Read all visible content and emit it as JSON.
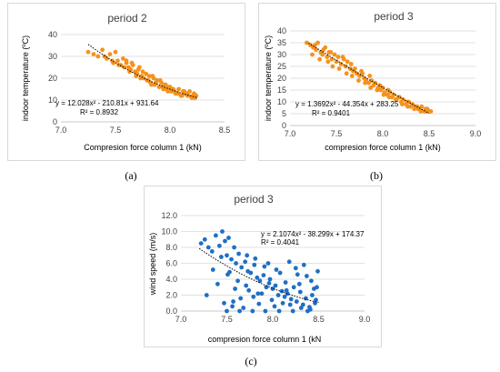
{
  "captions": {
    "a": "(a)",
    "b": "(b)",
    "c": "(c)"
  },
  "chart_data": [
    {
      "id": "a",
      "type": "scatter",
      "title": "period 2",
      "xlabel": "Compresion force column 1 (kN)",
      "ylabel": "indoor temperature (ºC)",
      "xlim": [
        7.0,
        8.5
      ],
      "ylim": [
        0,
        40
      ],
      "xticks": [
        "7.0",
        "7.5",
        "8.0",
        "8.5"
      ],
      "yticks": [
        "0",
        "10",
        "20",
        "30",
        "40"
      ],
      "color": "#F4921E",
      "trendline": {
        "equation": "y = 12.028x² - 210.81x + 931.64",
        "r2": "R² = 0.8932",
        "coef": [
          12.028,
          -210.81,
          931.64
        ],
        "x_range": [
          7.25,
          8.25
        ]
      },
      "series": [
        {
          "x": [
            7.25,
            7.3,
            7.34,
            7.38,
            7.42,
            7.45,
            7.48,
            7.5,
            7.52,
            7.55,
            7.57,
            7.6,
            7.62,
            7.64,
            7.66,
            7.68,
            7.7,
            7.72,
            7.74,
            7.76,
            7.78,
            7.8,
            7.82,
            7.84,
            7.86,
            7.88,
            7.9,
            7.92,
            7.94,
            7.96,
            7.98,
            8.0,
            8.02,
            8.04,
            8.06,
            8.08,
            8.1,
            8.12,
            8.14,
            8.16,
            8.18,
            8.2,
            8.22,
            8.24,
            7.4,
            7.47,
            7.53,
            7.58,
            7.63,
            7.69,
            7.73,
            7.79,
            7.83,
            7.87,
            7.93,
            7.97,
            8.01,
            8.05,
            8.11,
            8.15,
            8.21,
            7.6,
            7.65,
            7.75,
            7.85,
            7.95,
            8.03,
            8.13,
            7.71,
            7.81,
            7.91,
            7.99,
            8.07,
            8.17,
            8.23
          ],
          "y": [
            32,
            31,
            30,
            33,
            29,
            31,
            27,
            32,
            28,
            26,
            29,
            27,
            25,
            24,
            26,
            23,
            22,
            25,
            21,
            20,
            22,
            19,
            18,
            21,
            17,
            19,
            16,
            18,
            15,
            17,
            14,
            16,
            15,
            14,
            13,
            15,
            12,
            14,
            13,
            12,
            14,
            11,
            13,
            12,
            30,
            28,
            26,
            25,
            23,
            21,
            20,
            19,
            17,
            18,
            16,
            15,
            14,
            13,
            12,
            13,
            12,
            28,
            27,
            23,
            20,
            17,
            15,
            14,
            24,
            21,
            19,
            16,
            13,
            12,
            11
          ]
        }
      ]
    },
    {
      "id": "b",
      "type": "scatter",
      "title": "period 3",
      "xlabel": "compresion force column 1 (kN)",
      "ylabel": "indoor temperature (ºC)",
      "xlim": [
        7.0,
        9.0
      ],
      "ylim": [
        0,
        40
      ],
      "xticks": [
        "7.0",
        "7.5",
        "8.0",
        "8.5",
        "9.0"
      ],
      "yticks": [
        "0",
        "5",
        "10",
        "15",
        "20",
        "25",
        "30",
        "35",
        "40"
      ],
      "color": "#F4921E",
      "trendline": {
        "equation": "y = 1.3692x² - 44.354x + 283.25",
        "r2": "R² = 0.9401",
        "coef": [
          1.3692,
          -44.354,
          283.25
        ],
        "x_range": [
          7.2,
          8.5
        ]
      },
      "series": [
        {
          "x": [
            7.18,
            7.22,
            7.25,
            7.28,
            7.3,
            7.33,
            7.35,
            7.38,
            7.4,
            7.42,
            7.45,
            7.48,
            7.5,
            7.52,
            7.55,
            7.58,
            7.6,
            7.62,
            7.65,
            7.68,
            7.7,
            7.72,
            7.75,
            7.78,
            7.8,
            7.82,
            7.85,
            7.88,
            7.9,
            7.92,
            7.95,
            7.98,
            8.0,
            8.02,
            8.05,
            8.08,
            8.1,
            8.12,
            8.15,
            8.18,
            8.2,
            8.22,
            8.25,
            8.28,
            8.3,
            8.32,
            8.35,
            8.38,
            8.4,
            8.42,
            8.45,
            8.48,
            8.5,
            8.52,
            7.24,
            7.32,
            7.41,
            7.46,
            7.53,
            7.61,
            7.67,
            7.74,
            7.81,
            7.87,
            7.94,
            8.01,
            8.07,
            8.14,
            8.21,
            8.27,
            8.34,
            8.41,
            8.47,
            7.27,
            7.36,
            7.44,
            7.57,
            7.66,
            7.77,
            7.86,
            7.97,
            8.06,
            8.17,
            8.26,
            8.37,
            8.46
          ],
          "y": [
            35,
            34,
            33,
            32,
            35,
            31,
            30,
            33,
            29,
            31,
            28,
            30,
            27,
            29,
            26,
            28,
            25,
            27,
            24,
            23,
            24,
            22,
            21,
            22,
            20,
            19,
            18,
            19,
            17,
            18,
            16,
            15,
            16,
            14,
            13,
            14,
            12,
            13,
            11,
            12,
            10,
            11,
            9,
            10,
            8,
            9,
            8,
            7,
            7,
            8,
            6,
            7,
            6,
            6,
            30,
            28,
            27,
            25,
            24,
            22,
            21,
            19,
            18,
            16,
            15,
            13,
            12,
            11,
            9,
            8,
            7,
            6,
            6,
            34,
            32,
            31,
            29,
            26,
            23,
            21,
            17,
            15,
            12,
            10,
            8,
            7
          ]
        }
      ]
    },
    {
      "id": "c",
      "type": "scatter",
      "title": "period 3",
      "xlabel": "compresion force column 1 (kN",
      "ylabel": "wind speed (m/s)",
      "xlim": [
        7.0,
        9.0
      ],
      "ylim": [
        0,
        12
      ],
      "xticks": [
        "7.0",
        "7.5",
        "8.0",
        "8.5",
        "9.0"
      ],
      "yticks": [
        "0.0",
        "2.0",
        "4.0",
        "6.0",
        "8.0",
        "10.0",
        "12.0"
      ],
      "color": "#1F6FC5",
      "trendline": {
        "equation": "y = 2.1074x² - 38.299x + 174.37",
        "r2": "R² = 0.4041",
        "coef": [
          2.1074,
          -38.299,
          174.37
        ],
        "x_range": [
          7.2,
          8.5
        ]
      },
      "series": [
        {
          "x": [
            7.22,
            7.26,
            7.3,
            7.34,
            7.38,
            7.42,
            7.45,
            7.48,
            7.5,
            7.52,
            7.55,
            7.58,
            7.6,
            7.63,
            7.66,
            7.7,
            7.73,
            7.76,
            7.8,
            7.83,
            7.86,
            7.9,
            7.93,
            7.96,
            8.0,
            8.03,
            8.06,
            8.1,
            8.13,
            8.16,
            8.2,
            8.23,
            8.26,
            8.3,
            8.33,
            8.36,
            8.4,
            8.43,
            8.46,
            8.49,
            7.28,
            7.35,
            7.4,
            7.47,
            7.51,
            7.56,
            7.62,
            7.68,
            7.74,
            7.79,
            7.85,
            7.91,
            7.97,
            8.02,
            8.08,
            8.14,
            8.19,
            8.25,
            8.31,
            8.37,
            8.42,
            8.47,
            7.44,
            7.53,
            7.59,
            7.65,
            7.72,
            7.81,
            7.88,
            7.95,
            8.04,
            8.11,
            8.18,
            8.27,
            8.34,
            8.41,
            8.48,
            7.5,
            7.57,
            7.64,
            7.71,
            7.78,
            7.84,
            7.92,
            7.99,
            8.07,
            8.15,
            8.22,
            8.29,
            8.38,
            8.45
          ],
          "y": [
            8.5,
            9.0,
            8.0,
            7.5,
            9.5,
            8.2,
            10.0,
            8.8,
            7.0,
            9.2,
            6.5,
            8.0,
            6.0,
            7.2,
            5.5,
            6.2,
            5.0,
            4.8,
            5.8,
            4.2,
            3.8,
            4.5,
            3.0,
            3.5,
            2.8,
            3.2,
            2.0,
            2.5,
            1.8,
            2.2,
            1.5,
            3.0,
            1.2,
            2.4,
            0.8,
            1.6,
            0.5,
            2.0,
            1.0,
            5.0,
            2.0,
            5.2,
            3.4,
            1.0,
            4.6,
            0.6,
            3.8,
            0.4,
            2.6,
            1.8,
            0.9,
            5.6,
            4.0,
            0.6,
            4.8,
            3.6,
            0.8,
            5.4,
            0.4,
            4.4,
            3.8,
            1.4,
            6.8,
            4.9,
            2.8,
            1.6,
            7.0,
            6.6,
            2.2,
            6.0,
            5.2,
            1.0,
            6.2,
            4.6,
            5.8,
            0.2,
            3.0,
            0.0,
            1.2,
            0.0,
            3.2,
            0.0,
            2.2,
            0.0,
            1.4,
            0.0,
            2.6,
            0.0,
            3.4,
            0.0,
            2.8
          ]
        }
      ]
    }
  ]
}
